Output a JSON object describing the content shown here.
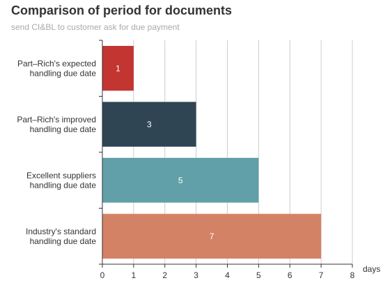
{
  "chart_data": {
    "type": "bar",
    "orientation": "horizontal",
    "title": "Comparison of period for documents",
    "subtitle": "send CI&BL to customer ask for due payment",
    "categories": [
      [
        "Part–Rich's expected",
        "handling due date"
      ],
      [
        "Part–Rich's improved",
        "handling due date"
      ],
      [
        "Excellent suppliers",
        "handling due date"
      ],
      [
        "Industry's standard",
        "handling due date"
      ]
    ],
    "values": [
      1,
      3,
      5,
      7
    ],
    "colors": [
      "#c23531",
      "#2f4554",
      "#61a0a8",
      "#d48265"
    ],
    "xlabel": "days",
    "xlim": [
      0,
      8
    ],
    "xticks": [
      "0",
      "1",
      "2",
      "3",
      "4",
      "5",
      "6",
      "7",
      "8"
    ],
    "grid": "vertical",
    "data_labels": "inside"
  }
}
